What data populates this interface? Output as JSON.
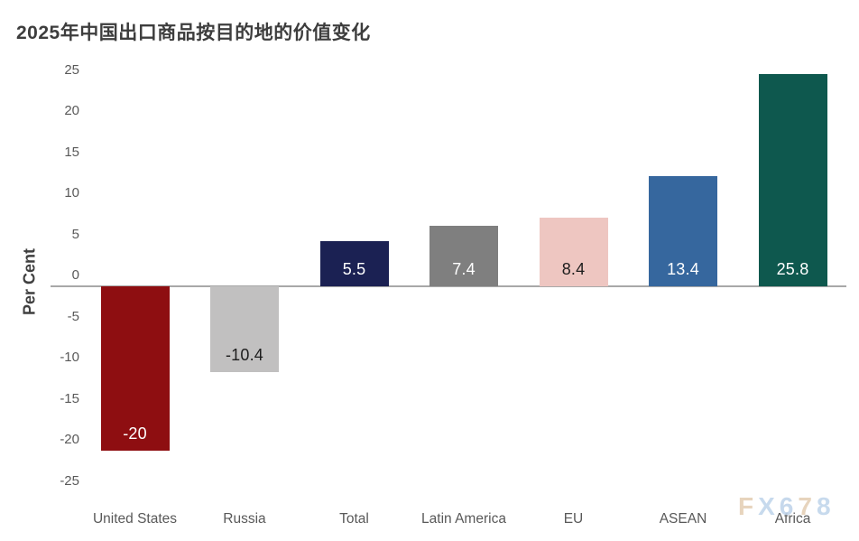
{
  "page_title": "2025年中国出口商品按目的地的价值变化",
  "watermark": {
    "text": "FX678",
    "letter_colors": [
      "#e5d0b6",
      "#c2d6ec",
      "#c0d4ea",
      "#e5d0b6",
      "#c2d6ec"
    ]
  },
  "chart_data": {
    "type": "bar",
    "title": "2025年中国出口商品按目的地的价值变化",
    "xlabel": "",
    "ylabel": "Per Cent",
    "ylim": [
      -25,
      25
    ],
    "y_ticks": [
      25,
      20,
      15,
      10,
      5,
      0,
      -5,
      -10,
      -15,
      -20,
      -25
    ],
    "grid": false,
    "legend": false,
    "categories": [
      "United States",
      "Russia",
      "Total",
      "Latin America",
      "EU",
      "ASEAN",
      "Africa"
    ],
    "values": [
      -20,
      -10.4,
      5.5,
      7.4,
      8.4,
      13.4,
      25.8
    ],
    "value_labels": [
      "-20",
      "-10.4",
      "5.5",
      "7.4",
      "8.4",
      "13.4",
      "25.8"
    ],
    "bar_colors": [
      "#8e0e11",
      "#c1c0c0",
      "#1b2153",
      "#7f7f7f",
      "#eec6c1",
      "#36679e",
      "#0e584e"
    ],
    "value_label_colors": [
      "#ffffff",
      "#1d1d1d",
      "#ffffff",
      "#ffffff",
      "#1d1d1d",
      "#ffffff",
      "#ffffff"
    ],
    "axis_line_color": "#a8a8a8",
    "tick_text_color": "#595959",
    "title_color": "#3d3d3d"
  }
}
